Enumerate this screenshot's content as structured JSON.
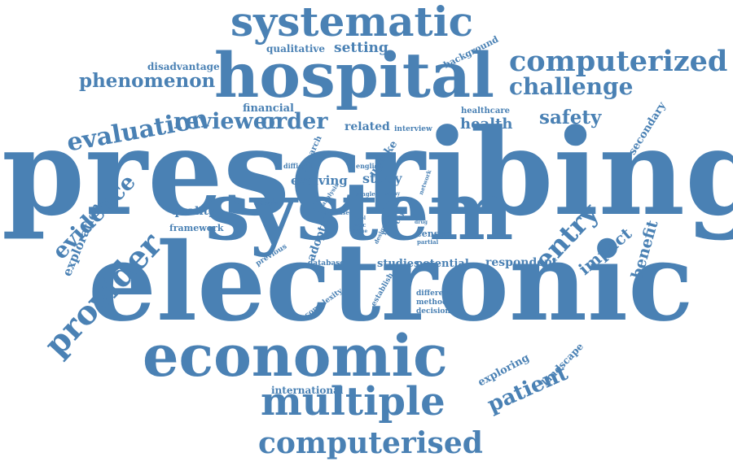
{
  "word_color": "#4a81b4",
  "background": "#ffffff",
  "words": [
    {
      "text": "prescribing",
      "weight": 100
    },
    {
      "text": "electronic",
      "weight": 98
    },
    {
      "text": "system",
      "weight": 78
    },
    {
      "text": "hospital",
      "weight": 62
    },
    {
      "text": "economic",
      "weight": 56
    },
    {
      "text": "systematic",
      "weight": 44
    },
    {
      "text": "multiple",
      "weight": 40
    },
    {
      "text": "computerized",
      "weight": 34
    },
    {
      "text": "computerised",
      "weight": 32
    },
    {
      "text": "provider",
      "weight": 30
    },
    {
      "text": "challenge",
      "weight": 27
    },
    {
      "text": "evaluation",
      "weight": 27
    },
    {
      "text": "entry",
      "weight": 26
    },
    {
      "text": "evidence",
      "weight": 22
    },
    {
      "text": "reviewer",
      "weight": 22
    },
    {
      "text": "order",
      "weight": 22
    },
    {
      "text": "phenomenon",
      "weight": 21
    },
    {
      "text": "patient",
      "weight": 21
    },
    {
      "text": "safety",
      "weight": 20
    },
    {
      "text": "impact",
      "weight": 18
    },
    {
      "text": "health",
      "weight": 16
    },
    {
      "text": "benefit",
      "weight": 16
    },
    {
      "text": "setting",
      "weight": 15
    },
    {
      "text": "exploration",
      "weight": 14
    },
    {
      "text": "evolving",
      "weight": 13
    },
    {
      "text": "study",
      "weight": 13
    },
    {
      "text": "respondent",
      "weight": 13
    },
    {
      "text": "quality",
      "weight": 13
    },
    {
      "text": "adoption",
      "weight": 12
    },
    {
      "text": "uptake",
      "weight": 12
    },
    {
      "text": "related",
      "weight": 12
    },
    {
      "text": "financial",
      "weight": 12
    },
    {
      "text": "studies",
      "weight": 12
    },
    {
      "text": "potential",
      "weight": 12
    },
    {
      "text": "secondary",
      "weight": 12
    },
    {
      "text": "exploring",
      "weight": 11
    },
    {
      "text": "landscape",
      "weight": 11
    },
    {
      "text": "international",
      "weight": 11
    },
    {
      "text": "disadvantage",
      "weight": 11
    },
    {
      "text": "qualitative",
      "weight": 11
    },
    {
      "text": "background",
      "weight": 10
    },
    {
      "text": "census",
      "weight": 10
    },
    {
      "text": "framework",
      "weight": 10
    },
    {
      "text": "research",
      "weight": 9
    },
    {
      "text": "healthcare",
      "weight": 9
    },
    {
      "text": "interview",
      "weight": 9
    },
    {
      "text": "database",
      "weight": 9
    },
    {
      "text": "more",
      "weight": 9
    },
    {
      "text": "care",
      "weight": 9
    },
    {
      "text": "complexity",
      "weight": 8
    },
    {
      "text": "establish",
      "weight": 8
    },
    {
      "text": "previous",
      "weight": 8
    },
    {
      "text": "different",
      "weight": 8
    },
    {
      "text": "method",
      "weight": 8
    },
    {
      "text": "decision",
      "weight": 8
    },
    {
      "text": "difficult",
      "weight": 8
    },
    {
      "text": "english",
      "weight": 8
    },
    {
      "text": "network",
      "weight": 7
    },
    {
      "text": "interim",
      "weight": 7
    },
    {
      "text": "analysis",
      "weight": 7
    },
    {
      "text": "single",
      "weight": 7
    },
    {
      "text": "many",
      "weight": 6
    },
    {
      "text": "phase",
      "weight": 6
    },
    {
      "text": "proc",
      "weight": 6
    },
    {
      "text": "tool",
      "weight": 6
    },
    {
      "text": "issue",
      "weight": 6
    },
    {
      "text": "design",
      "weight": 6
    },
    {
      "text": "drug",
      "weight": 6
    },
    {
      "text": "partial",
      "weight": 6
    }
  ]
}
